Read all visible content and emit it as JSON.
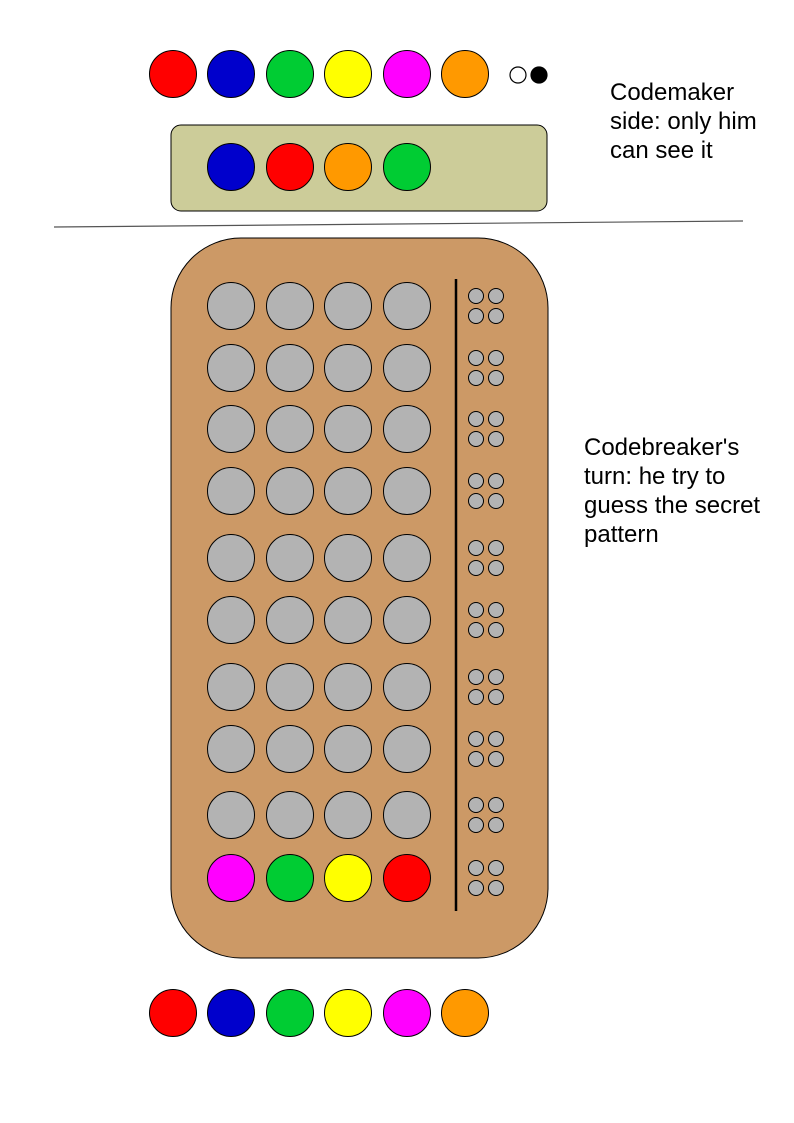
{
  "colors": {
    "red": "#ff0000",
    "blue": "#0000cc",
    "green": "#00cc33",
    "yellow": "#ffff00",
    "magenta": "#ff00ff",
    "orange": "#ff9900",
    "empty_hole": "#b3b3b3",
    "board": "#cc9966",
    "secret_tray": "#cccc99"
  },
  "palette_top": [
    "red",
    "blue",
    "green",
    "yellow",
    "magenta",
    "orange"
  ],
  "key_pegs": [
    "white",
    "black"
  ],
  "secret_code": [
    "blue",
    "red",
    "orange",
    "green"
  ],
  "codemaker_label": "Codemaker side: only him can see it",
  "codebreaker_label": "Codebreaker's turn: he try to guess the secret pattern",
  "board": {
    "rows": [
      [
        "empty",
        "empty",
        "empty",
        "empty"
      ],
      [
        "empty",
        "empty",
        "empty",
        "empty"
      ],
      [
        "empty",
        "empty",
        "empty",
        "empty"
      ],
      [
        "empty",
        "empty",
        "empty",
        "empty"
      ],
      [
        "empty",
        "empty",
        "empty",
        "empty"
      ],
      [
        "empty",
        "empty",
        "empty",
        "empty"
      ],
      [
        "empty",
        "empty",
        "empty",
        "empty"
      ],
      [
        "empty",
        "empty",
        "empty",
        "empty"
      ],
      [
        "empty",
        "empty",
        "empty",
        "empty"
      ],
      [
        "magenta",
        "green",
        "yellow",
        "red"
      ]
    ],
    "feedback_holes_per_row": 4
  },
  "palette_bottom": [
    "red",
    "blue",
    "green",
    "yellow",
    "magenta",
    "orange"
  ]
}
